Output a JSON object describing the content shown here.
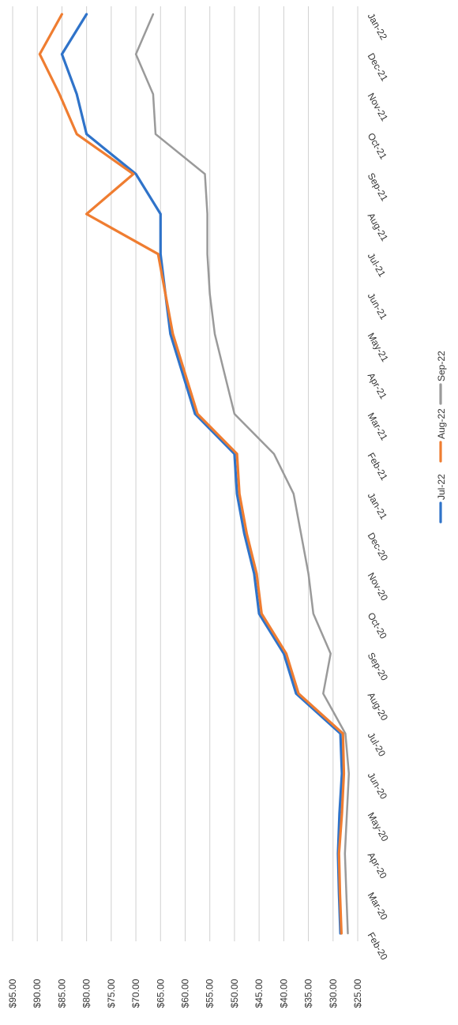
{
  "chart_data": {
    "type": "line",
    "title": "",
    "xlabel": "",
    "ylabel": "",
    "orientation": "rotated-90-clockwise",
    "grid": true,
    "legend_position": "right",
    "ylim": [
      25,
      95
    ],
    "y_ticks": [
      "$25.00",
      "$30.00",
      "$35.00",
      "$40.00",
      "$45.00",
      "$50.00",
      "$55.00",
      "$60.00",
      "$65.00",
      "$70.00",
      "$75.00",
      "$80.00",
      "$85.00",
      "$90.00",
      "$95.00"
    ],
    "categories": [
      "Feb-20",
      "Mar-20",
      "Apr-20",
      "May-20",
      "Jun-20",
      "Jul-20",
      "Aug-20",
      "Sep-20",
      "Oct-20",
      "Nov-20",
      "Dec-20",
      "Jan-21",
      "Feb-21",
      "Mar-21",
      "Apr-21",
      "May-21",
      "Jun-21",
      "Jul-21",
      "Aug-21",
      "Sep-21",
      "Oct-21",
      "Nov-21",
      "Dec-21",
      "Jan-22"
    ],
    "series": [
      {
        "name": "Jul-22",
        "color": "#2f73c9",
        "values": [
          28.5,
          28.8,
          29.0,
          28.7,
          28.2,
          28.5,
          37.5,
          40.0,
          45.0,
          46.0,
          48.0,
          49.5,
          50.0,
          58.0,
          60.5,
          63.0,
          64.0,
          65.0,
          65.0,
          70.0,
          80.0,
          82.0,
          85.0,
          80.0
        ]
      },
      {
        "name": "Aug-22",
        "color": "#ef7d31",
        "values": [
          28.3,
          28.6,
          28.8,
          28.2,
          27.8,
          28.0,
          37.0,
          39.5,
          44.5,
          45.5,
          47.5,
          49.0,
          49.5,
          57.5,
          60.0,
          62.5,
          64.0,
          65.5,
          80.0,
          70.5,
          82.0,
          85.5,
          89.5,
          85.0
        ]
      },
      {
        "name": "Sep-22",
        "color": "#9a9a9a",
        "values": [
          27.0,
          27.3,
          27.6,
          27.2,
          26.8,
          27.5,
          32.0,
          30.5,
          34.0,
          35.0,
          36.5,
          38.0,
          42.0,
          50.0,
          52.0,
          54.0,
          55.0,
          55.5,
          55.5,
          56.0,
          66.0,
          66.5,
          70.0,
          66.5
        ]
      }
    ]
  }
}
